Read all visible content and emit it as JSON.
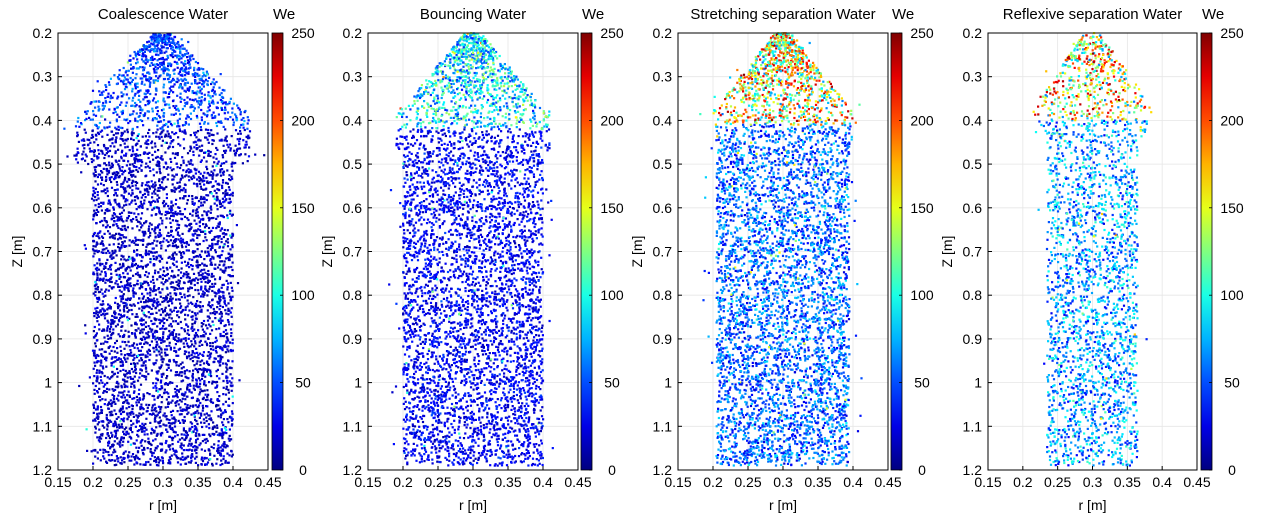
{
  "chart_data": [
    {
      "type": "scatter",
      "title": "Coalescence Water",
      "xlabel": "r [m]",
      "ylabel": "Z [m]",
      "xlim": [
        0.15,
        0.45
      ],
      "ylim": [
        0.2,
        1.2
      ],
      "y_reversed": true,
      "grid": true,
      "xticks": [
        "0.15",
        "0.2",
        "0.25",
        "0.3",
        "0.35",
        "0.4",
        "0.45"
      ],
      "yticks": [
        "0.2",
        "0.3",
        "0.4",
        "0.5",
        "0.6",
        "0.7",
        "0.8",
        "0.9",
        "1",
        "1.1",
        "1.2"
      ],
      "colorbar": {
        "label": "We",
        "range": [
          0,
          250
        ],
        "ticks": [
          "0",
          "50",
          "100",
          "150",
          "200",
          "250"
        ],
        "colormap": "jet"
      },
      "distribution": {
        "r_center": 0.3,
        "tip_z": 0.2,
        "shoulder_z": 0.39,
        "half_width_body": 0.1,
        "half_width_flare": 0.125,
        "flare_z": 0.45,
        "density": "high",
        "we_mean": 12,
        "we_peak_region": "tip",
        "we_tip_mean": 45
      }
    },
    {
      "type": "scatter",
      "title": "Bouncing Water",
      "xlabel": "r [m]",
      "ylabel": "Z [m]",
      "xlim": [
        0.15,
        0.45
      ],
      "ylim": [
        0.2,
        1.2
      ],
      "y_reversed": true,
      "grid": true,
      "xticks": [
        "0.15",
        "0.2",
        "0.25",
        "0.3",
        "0.35",
        "0.4",
        "0.45"
      ],
      "yticks": [
        "0.2",
        "0.3",
        "0.4",
        "0.5",
        "0.6",
        "0.7",
        "0.8",
        "0.9",
        "1",
        "1.1",
        "1.2"
      ],
      "colorbar": {
        "label": "We",
        "range": [
          0,
          250
        ],
        "ticks": [
          "0",
          "50",
          "100",
          "150",
          "200",
          "250"
        ],
        "colormap": "jet"
      },
      "distribution": {
        "r_center": 0.3,
        "tip_z": 0.2,
        "shoulder_z": 0.39,
        "half_width_body": 0.1,
        "half_width_flare": 0.11,
        "flare_z": 0.42,
        "density": "high",
        "we_mean": 25,
        "we_peak_region": "tip",
        "we_tip_mean": 90
      }
    },
    {
      "type": "scatter",
      "title": "Stretching separation Water",
      "xlabel": "r [m]",
      "ylabel": "Z [m]",
      "xlim": [
        0.15,
        0.45
      ],
      "ylim": [
        0.2,
        1.2
      ],
      "y_reversed": true,
      "grid": true,
      "xticks": [
        "0.15",
        "0.2",
        "0.25",
        "0.3",
        "0.35",
        "0.4",
        "0.45"
      ],
      "yticks": [
        "0.2",
        "0.3",
        "0.4",
        "0.5",
        "0.6",
        "0.7",
        "0.8",
        "0.9",
        "1",
        "1.1",
        "1.2"
      ],
      "colorbar": {
        "label": "We",
        "range": [
          0,
          250
        ],
        "ticks": [
          "0",
          "50",
          "100",
          "150",
          "200",
          "250"
        ],
        "colormap": "jet"
      },
      "distribution": {
        "r_center": 0.3,
        "tip_z": 0.2,
        "shoulder_z": 0.38,
        "half_width_body": 0.095,
        "half_width_flare": 0.1,
        "flare_z": 0.4,
        "density": "high",
        "we_mean": 55,
        "we_peak_region": "tip",
        "we_tip_mean": 160
      }
    },
    {
      "type": "scatter",
      "title": "Reflexive separation Water",
      "xlabel": "r [m]",
      "ylabel": "Z [m]",
      "xlim": [
        0.15,
        0.45
      ],
      "ylim": [
        0.2,
        1.2
      ],
      "y_reversed": true,
      "grid": true,
      "xticks": [
        "0.15",
        "0.2",
        "0.25",
        "0.3",
        "0.35",
        "0.4",
        "0.45"
      ],
      "yticks": [
        "0.2",
        "0.3",
        "0.4",
        "0.5",
        "0.6",
        "0.7",
        "0.8",
        "0.9",
        "1",
        "1.1",
        "1.2"
      ],
      "colorbar": {
        "label": "We",
        "range": [
          0,
          250
        ],
        "ticks": [
          "0",
          "50",
          "100",
          "150",
          "200",
          "250"
        ],
        "colormap": "jet"
      },
      "distribution": {
        "r_center": 0.3,
        "tip_z": 0.2,
        "shoulder_z": 0.37,
        "half_width_body": 0.065,
        "half_width_flare": 0.085,
        "flare_z": 0.38,
        "density": "low",
        "we_mean": 70,
        "we_peak_region": "tip",
        "we_tip_mean": 160
      }
    }
  ]
}
